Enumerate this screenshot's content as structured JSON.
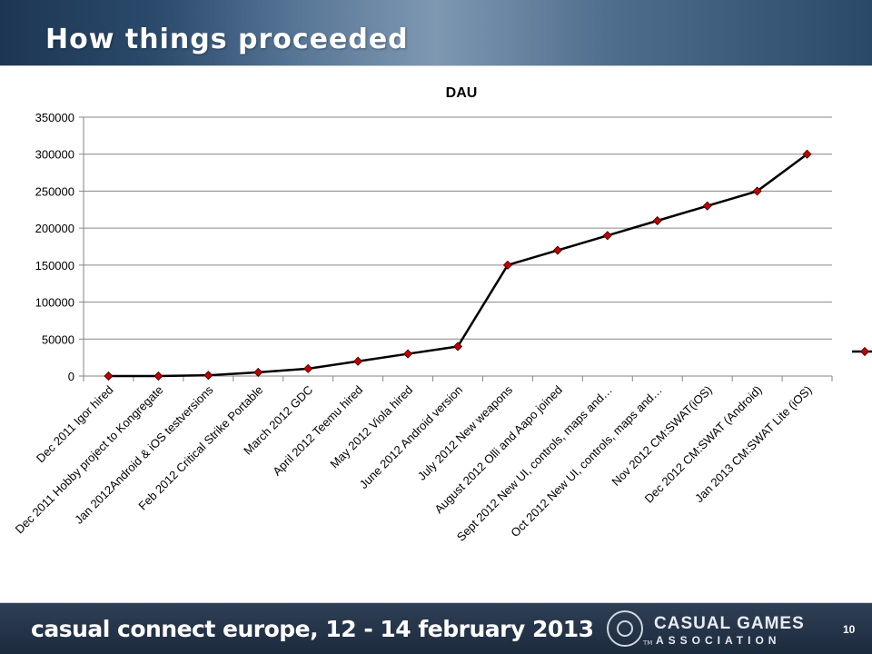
{
  "slide": {
    "title": "How things proceeded",
    "page_number": "10"
  },
  "footer": {
    "event_text": "casual connect europe, 12 - 14 february 2013",
    "org_line1": "CASUAL GAMES",
    "org_line2": "ASSOCIATION",
    "trademark": "TM",
    "logo_icon": "cga-logo-icon"
  },
  "colors": {
    "line": "#000000",
    "marker": "#c00000",
    "grid": "#868686"
  },
  "chart_data": {
    "type": "line",
    "title": "DAU",
    "xlabel": "",
    "ylabel": "",
    "ylim": [
      0,
      350000
    ],
    "yticks": [
      0,
      50000,
      100000,
      150000,
      200000,
      250000,
      300000,
      350000
    ],
    "ytick_labels": [
      "0",
      "50000",
      "100000",
      "150000",
      "200000",
      "250000",
      "300000",
      "350000"
    ],
    "grid": true,
    "legend": "right",
    "categories": [
      "Dec 2011 Igor hired",
      "Dec 2011 Hobby project to Kongregate",
      "Jan 2012Android & iOS testversions",
      "Feb 2012 Critical Strike Portable",
      "March 2012 GDC",
      "April 2012 Teemu hired",
      "May 2012 Viola hired",
      "June 2012 Android version",
      "July 2012 New weapons",
      "August 2012 Olli and Aapo joined",
      "Sept 2012 New UI, controls, maps and…",
      "Oct 2012 New UI, controls, maps and…",
      "Nov 2012 CM:SWAT(iOS)",
      "Dec 2012 CM:SWAT (Android)",
      "Jan 2013 CM:SWAT Lite (iOS)"
    ],
    "series": [
      {
        "values": [
          0,
          0,
          1000,
          5000,
          10000,
          20000,
          30000,
          40000,
          150000,
          170000,
          190000,
          210000,
          230000,
          250000,
          300000
        ]
      }
    ]
  }
}
